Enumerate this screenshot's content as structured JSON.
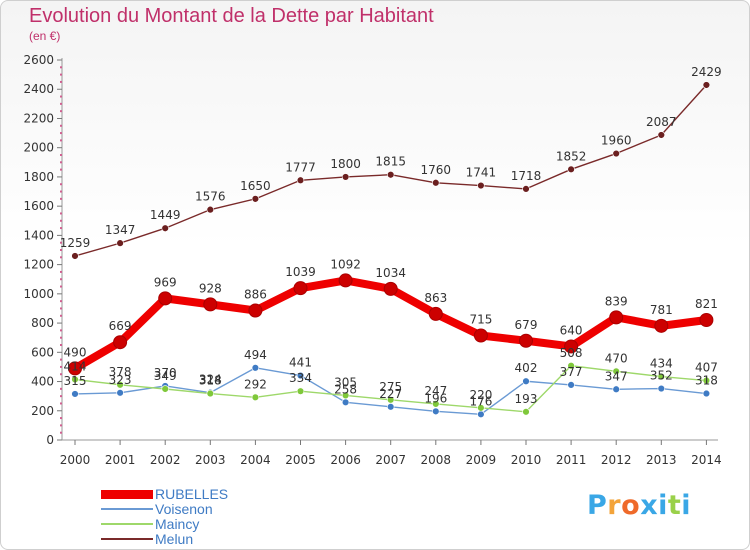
{
  "chart_data": {
    "type": "line",
    "title": "Evolution du Montant de la Dette par Habitant",
    "subtitle": "(en €)",
    "xlabel": "",
    "ylabel": "",
    "ylim": [
      0,
      2600
    ],
    "ytick_step": 200,
    "legend_position": "bottom-left",
    "grid": false,
    "categories": [
      "2000",
      "2001",
      "2002",
      "2003",
      "2004",
      "2005",
      "2006",
      "2007",
      "2008",
      "2009",
      "2010",
      "2011",
      "2012",
      "2013",
      "2014"
    ],
    "series": [
      {
        "name": "RUBELLES",
        "color": "#ee0000",
        "marker_color": "#cc0000",
        "width": "thick",
        "values": [
          490,
          669,
          969,
          928,
          886,
          1039,
          1092,
          1034,
          863,
          715,
          679,
          640,
          839,
          781,
          821
        ]
      },
      {
        "name": "Voisenon",
        "color": "#6a9ad4",
        "marker_color": "#3f7bc4",
        "width": "thin",
        "values": [
          315,
          323,
          370,
          324,
          494,
          441,
          258,
          227,
          196,
          176,
          402,
          377,
          347,
          352,
          318
        ]
      },
      {
        "name": "Maincy",
        "color": "#9ed86a",
        "marker_color": "#7fc83a",
        "width": "thin",
        "values": [
          414,
          378,
          349,
          318,
          292,
          334,
          305,
          275,
          247,
          220,
          193,
          508,
          470,
          434,
          407
        ]
      },
      {
        "name": "Melun",
        "color": "#7a2a2a",
        "marker_color": "#6b1f1f",
        "width": "thin",
        "values": [
          1259,
          1347,
          1449,
          1576,
          1650,
          1777,
          1800,
          1815,
          1760,
          1741,
          1718,
          1852,
          1960,
          2087,
          2429
        ]
      }
    ]
  },
  "brand": {
    "letters": [
      "P",
      "r",
      "o",
      "x",
      "i",
      "t",
      "i"
    ],
    "colors": [
      "#3aa7e6",
      "#f3a43a",
      "#ef6a2a",
      "#3aa7e6",
      "#3aa7e6",
      "#9ad14a",
      "#3aa7e6"
    ]
  }
}
